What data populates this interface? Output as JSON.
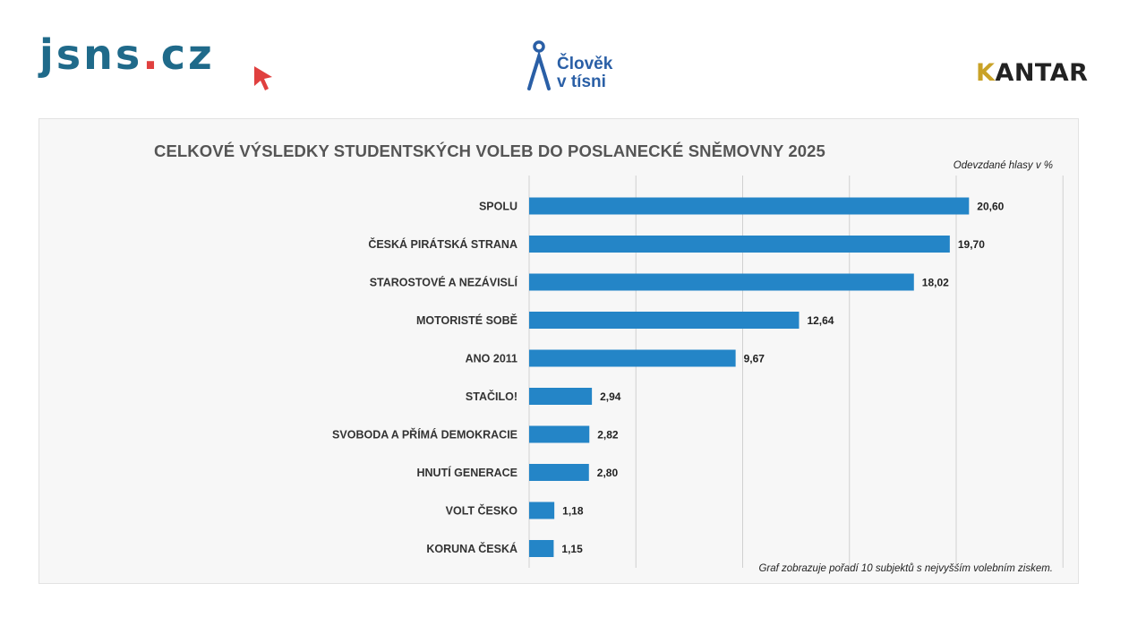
{
  "logos": {
    "jsns": {
      "main": "jsns",
      "dot": ".",
      "tld": "cz"
    },
    "clovek": {
      "line1": "Člověk",
      "line2": "v tísni"
    },
    "kantar": {
      "k": "K",
      "rest": "ANTAR"
    }
  },
  "colors": {
    "bar": "#2485c7",
    "grid": "#d0d0d0",
    "text": "#333333"
  },
  "chart_data": {
    "type": "bar",
    "orientation": "horizontal",
    "title": "CELKOVÉ VÝSLEDKY STUDENTSKÝCH VOLEB DO POSLANECKÉ SNĚMOVNY 2025",
    "unit_label": "Odevzdané hlasy v %",
    "footnote": "Graf zobrazuje pořadí 10 subjektů s nejvyšším volebním ziskem.",
    "categories": [
      "SPOLU",
      "ČESKÁ PIRÁTSKÁ STRANA",
      "STAROSTOVÉ A NEZÁVISLÍ",
      "MOTORISTÉ SOBĚ",
      "ANO 2011",
      "STAČILO!",
      "SVOBODA A PŘÍMÁ DEMOKRACIE",
      "HNUTÍ GENERACE",
      "VOLT ČESKO",
      "KORUNA ČESKÁ"
    ],
    "values": [
      20.6,
      19.7,
      18.02,
      12.64,
      9.67,
      2.94,
      2.82,
      2.8,
      1.18,
      1.15
    ],
    "value_labels": [
      "20,60",
      "19,70",
      "18,02",
      "12,64",
      "9,67",
      "2,94",
      "2,82",
      "2,80",
      "1,18",
      "1,15"
    ],
    "xlim": [
      0,
      25
    ],
    "grid": true
  }
}
